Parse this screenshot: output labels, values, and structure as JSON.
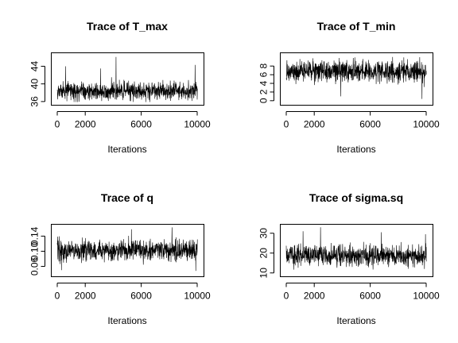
{
  "chart_data": [
    {
      "type": "line",
      "title": "Trace of T_max",
      "xlabel": "Iterations",
      "ylabel": "",
      "xlim": [
        0,
        10000
      ],
      "ylim": [
        35.8,
        46.6
      ],
      "xticks": [
        0,
        2000,
        6000,
        10000
      ],
      "xtick_labels": [
        "0",
        "2000",
        "6000",
        "10000"
      ],
      "yticks": [
        36,
        40,
        44
      ],
      "ytick_labels": [
        "36",
        "40",
        "44"
      ],
      "series": [
        {
          "stats": {
            "n": 10000,
            "center": 38.3,
            "spread": 1.1,
            "min": 35.9,
            "max": 46.1,
            "spikes": [
              [
                600,
                44.0
              ],
              [
                4200,
                46.1
              ],
              [
                9850,
                44.3
              ],
              [
                3100,
                43.5
              ]
            ]
          },
          "color": "#000000"
        }
      ],
      "grid": false,
      "legend": "none"
    },
    {
      "type": "line",
      "title": "Trace of T_min",
      "xlabel": "Iterations",
      "ylabel": "",
      "xlim": [
        0,
        10000
      ],
      "ylim": [
        -0.4,
        10.6
      ],
      "xticks": [
        0,
        2000,
        6000,
        10000
      ],
      "xtick_labels": [
        "0",
        "2000",
        "6000",
        "10000"
      ],
      "yticks": [
        0,
        2,
        4,
        6,
        8
      ],
      "ytick_labels": [
        "0",
        "2",
        "4",
        "6",
        "8"
      ],
      "series": [
        {
          "stats": {
            "n": 10000,
            "center": 6.8,
            "spread": 1.3,
            "min": 0.4,
            "max": 10.1,
            "spikes": [
              [
                3900,
                1.0
              ],
              [
                9700,
                0.4
              ],
              [
                7600,
                10.1
              ],
              [
                1900,
                9.8
              ]
            ]
          },
          "color": "#000000"
        }
      ],
      "grid": false,
      "legend": "none"
    },
    {
      "type": "line",
      "title": "Trace of q",
      "xlabel": "Iterations",
      "ylabel": "",
      "xlim": [
        0,
        10000
      ],
      "ylim": [
        0.04,
        0.166
      ],
      "xticks": [
        0,
        2000,
        6000,
        10000
      ],
      "xtick_labels": [
        "0",
        "2000",
        "6000",
        "10000"
      ],
      "yticks": [
        0.06,
        0.1,
        0.14
      ],
      "ytick_labels": [
        "0.06",
        "0.10",
        "0.14"
      ],
      "series": [
        {
          "stats": {
            "n": 10000,
            "center": 0.102,
            "spread": 0.015,
            "min": 0.048,
            "max": 0.163,
            "spikes": [
              [
                300,
                0.05
              ],
              [
                9900,
                0.048
              ],
              [
                8200,
                0.163
              ],
              [
                5300,
                0.158
              ]
            ]
          },
          "color": "#000000"
        }
      ],
      "grid": false,
      "legend": "none"
    },
    {
      "type": "line",
      "title": "Trace of sigma.sq",
      "xlabel": "Iterations",
      "ylabel": "",
      "xlim": [
        0,
        10000
      ],
      "ylim": [
        9.5,
        33.5
      ],
      "xticks": [
        0,
        2000,
        6000,
        10000
      ],
      "xtick_labels": [
        "0",
        "2000",
        "6000",
        "10000"
      ],
      "yticks": [
        10,
        20,
        30
      ],
      "ytick_labels": [
        "10",
        "20",
        "30"
      ],
      "series": [
        {
          "stats": {
            "n": 10000,
            "center": 18.5,
            "spread": 2.8,
            "min": 11.5,
            "max": 33.0,
            "spikes": [
              [
                2450,
                33.0
              ],
              [
                6800,
                30.5
              ],
              [
                9950,
                29.5
              ],
              [
                1200,
                31.0
              ]
            ]
          },
          "color": "#000000"
        }
      ],
      "grid": false,
      "legend": "none"
    }
  ]
}
